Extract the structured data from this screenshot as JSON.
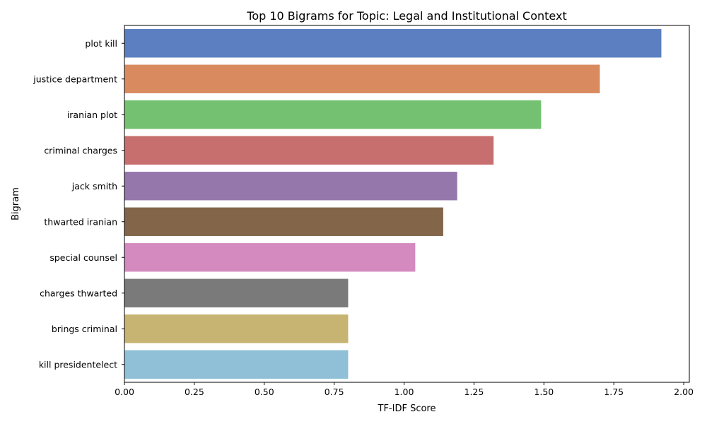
{
  "chart_data": {
    "type": "bar",
    "orientation": "horizontal",
    "title": "Top 10 Bigrams for Topic: Legal and Institutional Context",
    "xlabel": "TF-IDF Score",
    "ylabel": "Bigram",
    "xlim": [
      0,
      2.02
    ],
    "xticks": [
      0.0,
      0.25,
      0.5,
      0.75,
      1.0,
      1.25,
      1.5,
      1.75,
      2.0
    ],
    "xtick_labels": [
      "0.00",
      "0.25",
      "0.50",
      "0.75",
      "1.00",
      "1.25",
      "1.50",
      "1.75",
      "2.00"
    ],
    "grid": false,
    "legend": "none",
    "categories": [
      "plot kill",
      "justice department",
      "iranian plot",
      "criminal charges",
      "jack smith",
      "thwarted iranian",
      "special counsel",
      "charges thwarted",
      "brings criminal",
      "kill presidentelect"
    ],
    "values": [
      1.92,
      1.7,
      1.49,
      1.32,
      1.19,
      1.14,
      1.04,
      0.8,
      0.8,
      0.8
    ],
    "colors": [
      "#5b7fc1",
      "#d98b5f",
      "#74c172",
      "#c76e6e",
      "#9577ac",
      "#83654a",
      "#d48abf",
      "#7a7a7a",
      "#c7b472",
      "#8fc0d7"
    ]
  }
}
